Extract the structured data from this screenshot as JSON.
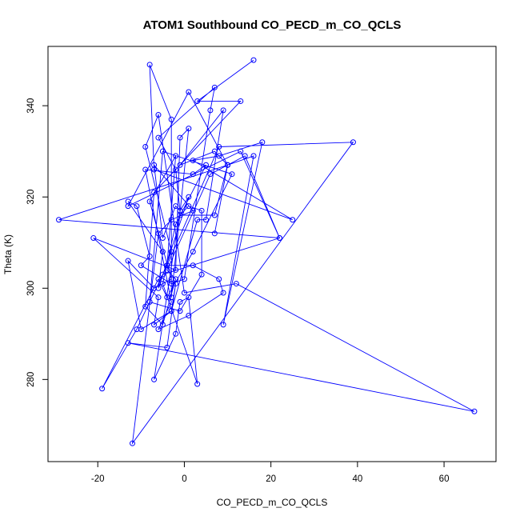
{
  "chart_data": {
    "type": "line",
    "title": "ATOM1 Southbound CO_PECD_m_CO_QCLS",
    "xlabel": "CO_PECD_m_CO_QCLS",
    "ylabel": "Theta (K)",
    "xlim": [
      -31.5,
      72
    ],
    "ylim": [
      262,
      353
    ],
    "x_ticks": [
      -20,
      0,
      20,
      40,
      60
    ],
    "y_ticks": [
      280,
      300,
      320,
      340
    ],
    "grid": false,
    "legend": "none",
    "series": [
      {
        "color": "#0000ff",
        "marker": "open-circle",
        "points": [
          [
            16,
            350
          ],
          [
            3,
            341
          ],
          [
            13,
            341
          ],
          [
            -7,
            321
          ],
          [
            -9,
            296
          ],
          [
            -5,
            292
          ],
          [
            -2,
            302
          ],
          [
            -4,
            304
          ],
          [
            6,
            325
          ],
          [
            14,
            329
          ],
          [
            22,
            311
          ],
          [
            -5,
            303
          ],
          [
            -3,
            308
          ],
          [
            -9,
            331
          ],
          [
            -6,
            338
          ],
          [
            0,
            299
          ],
          [
            12,
            301
          ],
          [
            67,
            273
          ],
          [
            -13,
            288
          ],
          [
            -4,
            287
          ],
          [
            -2,
            301
          ],
          [
            -3,
            295
          ],
          [
            -10,
            291
          ],
          [
            -13,
            306
          ],
          [
            -7,
            300
          ],
          [
            -3,
            302
          ],
          [
            -8,
            319
          ],
          [
            -2,
            329
          ],
          [
            -4,
            305
          ],
          [
            8,
            331
          ],
          [
            39,
            332
          ],
          [
            -12,
            266
          ],
          [
            -6,
            312
          ],
          [
            -3,
            315
          ],
          [
            2,
            317
          ],
          [
            -7,
            327
          ],
          [
            -5,
            311
          ],
          [
            -2,
            318
          ],
          [
            -1,
            317
          ],
          [
            1,
            320
          ],
          [
            -6,
            300
          ],
          [
            -5,
            308
          ],
          [
            -13,
            319
          ],
          [
            -11,
            318
          ],
          [
            -8,
            307
          ],
          [
            -10,
            305
          ],
          [
            -3,
            301
          ],
          [
            0,
            302
          ],
          [
            6,
            339
          ],
          [
            7,
            344
          ],
          [
            -6,
            333
          ],
          [
            -2,
            326
          ],
          [
            -1,
            317
          ],
          [
            -7,
            280
          ],
          [
            -2,
            290
          ],
          [
            -1,
            297
          ],
          [
            1,
            298
          ],
          [
            3,
            279
          ],
          [
            -5,
            301
          ],
          [
            -2,
            314
          ],
          [
            5,
            327
          ],
          [
            2,
            325
          ],
          [
            -9,
            326
          ],
          [
            -3,
            297
          ],
          [
            -6,
            291
          ],
          [
            1,
            294
          ],
          [
            9,
            299
          ],
          [
            8,
            302
          ],
          [
            2,
            305
          ],
          [
            -4,
            305
          ],
          [
            -11,
            291
          ],
          [
            -19,
            278
          ],
          [
            -6,
            302
          ],
          [
            -4,
            298
          ],
          [
            2,
            308
          ],
          [
            11,
            325
          ],
          [
            -5,
            330
          ],
          [
            -8,
            297
          ],
          [
            -1,
            295
          ],
          [
            4,
            303
          ],
          [
            4,
            317
          ],
          [
            1,
            318
          ],
          [
            -1,
            316
          ],
          [
            7,
            316
          ],
          [
            10,
            327
          ],
          [
            -29,
            315
          ],
          [
            22,
            311
          ],
          [
            13,
            330
          ],
          [
            -13,
            318
          ],
          [
            1,
            343
          ],
          [
            10,
            327
          ],
          [
            16,
            329
          ],
          [
            9,
            292
          ],
          [
            18,
            332
          ],
          [
            8,
            329
          ],
          [
            2,
            328
          ],
          [
            25,
            315
          ],
          [
            -7,
            326
          ],
          [
            -8,
            349
          ],
          [
            -3,
            337
          ],
          [
            -3,
            298
          ],
          [
            1,
            335
          ],
          [
            -1,
            333
          ],
          [
            -2,
            304
          ],
          [
            -21,
            311
          ],
          [
            -6,
            298
          ],
          [
            -7,
            292
          ],
          [
            -3,
            295
          ],
          [
            3,
            315
          ],
          [
            5,
            315
          ],
          [
            9,
            339
          ],
          [
            -1,
            327
          ],
          [
            7,
            330
          ],
          [
            10,
            327
          ],
          [
            7,
            312
          ]
        ]
      }
    ]
  }
}
